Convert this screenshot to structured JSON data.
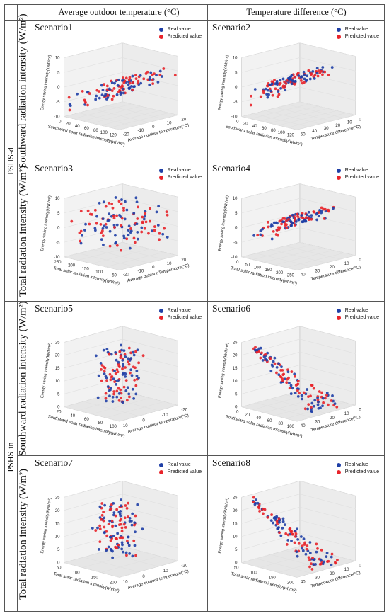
{
  "headers": {
    "col1": "Average outdoor temperature (°C)",
    "col2": "Temperature difference (°C)",
    "group1": "PSHS-d",
    "group2": "PSHS-in",
    "row_south": "Southward radiation intensity (W/m²)",
    "row_total": "Total radiation intensity (W/m²)"
  },
  "legend": {
    "real": "Real value",
    "pred": "Predicted value",
    "real_color": "#1f3fa6",
    "pred_color": "#e8232a"
  },
  "zlabel": "Energy saving intensity(kWh/m²)",
  "chart_data": [
    {
      "type": "scatter",
      "title": "Scenario1",
      "xlabel": "Southward solar radiation intensity(wh/m²)",
      "ylabel": "Average outdoor temperature(°C)",
      "xticks": [
        "0",
        "20",
        "40",
        "60",
        "80",
        "100",
        "120"
      ],
      "yticks": [
        "-20",
        "-10",
        "0",
        "10",
        "20"
      ],
      "zticks": [
        "-10",
        "-5",
        "0",
        "5",
        "10"
      ],
      "zrange": [
        -12,
        12
      ],
      "shape": "rising",
      "seed": 11
    },
    {
      "type": "scatter",
      "title": "Scenario2",
      "xlabel": "Southward solar radiation intensity(wh/m²)",
      "ylabel": "Temperature difference(°C)",
      "xticks": [
        "0",
        "20",
        "40",
        "60",
        "80",
        "100",
        "120"
      ],
      "yticks": [
        "50",
        "40",
        "30",
        "20",
        "10",
        "0"
      ],
      "zticks": [
        "-10",
        "-5",
        "0",
        "5",
        "10"
      ],
      "zrange": [
        -12,
        12
      ],
      "shape": "curve",
      "seed": 23
    },
    {
      "type": "scatter",
      "title": "Scenario3",
      "xlabel": "Total solar radiation intensity(wh/m²)",
      "ylabel": "Average outdoor Temperature(°C)",
      "xticks": [
        "250",
        "200",
        "150",
        "100",
        "50"
      ],
      "yticks": [
        "-20",
        "-10",
        "0",
        "10",
        "20"
      ],
      "zticks": [
        "-10",
        "-5",
        "0",
        "5",
        "10"
      ],
      "zrange": [
        -12,
        12
      ],
      "shape": "cloud",
      "seed": 37
    },
    {
      "type": "scatter",
      "title": "Scenario4",
      "xlabel": "Total solar radiation intensity(wh/m²)",
      "ylabel": "Temperature difference(°C)",
      "xticks": [
        "0",
        "50",
        "100",
        "150",
        "200",
        "250"
      ],
      "yticks": [
        "40",
        "30",
        "20",
        "10",
        "0"
      ],
      "zticks": [
        "-10",
        "-5",
        "0",
        "5",
        "10"
      ],
      "zrange": [
        -12,
        12
      ],
      "shape": "curve",
      "seed": 41
    },
    {
      "type": "scatter",
      "title": "Scenario5",
      "xlabel": "Southward solar radiation intensity(wh/m²)",
      "ylabel": "Average outdoor temperature(°C)",
      "xticks": [
        "20",
        "40",
        "60",
        "80",
        "100"
      ],
      "yticks": [
        "10",
        "0",
        "-10",
        "-20"
      ],
      "zticks": [
        "0",
        "5",
        "10",
        "15",
        "20",
        "25"
      ],
      "zrange": [
        0,
        27
      ],
      "shape": "column",
      "seed": 53
    },
    {
      "type": "scatter",
      "title": "Scenario6",
      "xlabel": "Southward solar radiation intensity(wh/m²)",
      "ylabel": "Temperature difference(°C)",
      "xticks": [
        "0",
        "20",
        "40",
        "60",
        "80",
        "100"
      ],
      "yticks": [
        "40",
        "30",
        "20",
        "10",
        "0"
      ],
      "zticks": [
        "0",
        "5",
        "10",
        "15",
        "20",
        "25"
      ],
      "zrange": [
        0,
        27
      ],
      "shape": "diag",
      "seed": 67
    },
    {
      "type": "scatter",
      "title": "Scenario7",
      "xlabel": "Total solar radiation intensity(wh/m²)",
      "ylabel": "Average outdoor temperature(°C)",
      "xticks": [
        "50",
        "100",
        "150",
        "200"
      ],
      "yticks": [
        "10",
        "0",
        "-10",
        "-20"
      ],
      "zticks": [
        "0",
        "5",
        "10",
        "15",
        "20",
        "25"
      ],
      "zrange": [
        0,
        27
      ],
      "shape": "column",
      "seed": 71
    },
    {
      "type": "scatter",
      "title": "Scenario8",
      "xlabel": "Total solar radiation intensity(wh/m²)",
      "ylabel": "Temperature difference(°C)",
      "xticks": [
        "50",
        "100",
        "150",
        "200"
      ],
      "yticks": [
        "40",
        "30",
        "20",
        "10",
        "0"
      ],
      "zticks": [
        "0",
        "5",
        "10",
        "15",
        "20",
        "25"
      ],
      "zrange": [
        0,
        27
      ],
      "shape": "diag",
      "seed": 83
    }
  ]
}
